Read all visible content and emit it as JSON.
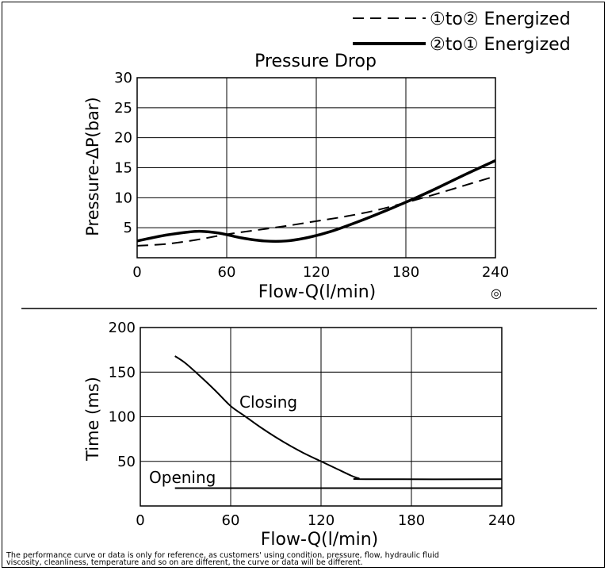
{
  "legend": {
    "dashed_label": "①to② Energized",
    "solid_label": "②to① Energized"
  },
  "chart_data": [
    {
      "type": "line",
      "title": "Pressure Drop",
      "xlabel": "Flow-Q(l/min)",
      "ylabel": "Pressure-ΔP(bar)",
      "xlim": [
        0,
        240
      ],
      "ylim": [
        0,
        30
      ],
      "x_ticks": [
        "0",
        "60",
        "120",
        "180",
        "240"
      ],
      "y_ticks": [
        "5",
        "10",
        "15",
        "20",
        "25",
        "30"
      ],
      "grid": true,
      "legend_position": "top-right",
      "series": [
        {
          "name": "①to② Energized",
          "style": "dashed",
          "x": [
            0,
            20,
            40,
            60,
            80,
            100,
            120,
            140,
            160,
            180,
            200,
            220,
            240
          ],
          "y": [
            2.0,
            2.3,
            3.0,
            3.9,
            4.6,
            5.3,
            6.1,
            6.9,
            7.9,
            9.2,
            10.6,
            12.1,
            13.6
          ]
        },
        {
          "name": "②to① Energized",
          "style": "solid",
          "x": [
            0,
            20,
            40,
            55,
            70,
            85,
            100,
            115,
            130,
            150,
            170,
            185,
            200,
            220,
            240
          ],
          "y": [
            2.8,
            3.8,
            4.4,
            4.1,
            3.3,
            2.8,
            2.8,
            3.4,
            4.4,
            6.2,
            8.2,
            9.8,
            11.5,
            13.9,
            16.2
          ]
        }
      ]
    },
    {
      "type": "line",
      "xlabel": "Flow-Q(l/min)",
      "ylabel": "Time (ms)",
      "xlim": [
        0,
        240
      ],
      "ylim": [
        0,
        200
      ],
      "x_ticks": [
        "0",
        "60",
        "120",
        "180",
        "240"
      ],
      "y_ticks": [
        "50",
        "100",
        "150",
        "200"
      ],
      "grid": true,
      "annotations": [
        "Closing",
        "Opening"
      ],
      "series": [
        {
          "name": "Closing",
          "x": [
            23,
            30,
            40,
            50,
            60,
            70,
            80,
            90,
            100,
            110,
            120,
            130,
            140,
            145,
            150,
            240
          ],
          "y": [
            168,
            160,
            145,
            129,
            112,
            100,
            88,
            77,
            67,
            58,
            50,
            42,
            34,
            31,
            30,
            30
          ]
        },
        {
          "name": "Opening",
          "x": [
            23,
            240
          ],
          "y": [
            20,
            20
          ]
        }
      ]
    }
  ],
  "footnote": {
    "line1": "The performance curve or data is only for reference, as customers' using condition, pressure, flow, hydraulic fluid",
    "line2": "viscosity, cleanliness, temperature and so on are different, the curve or data will be different."
  },
  "symbol": "◎"
}
